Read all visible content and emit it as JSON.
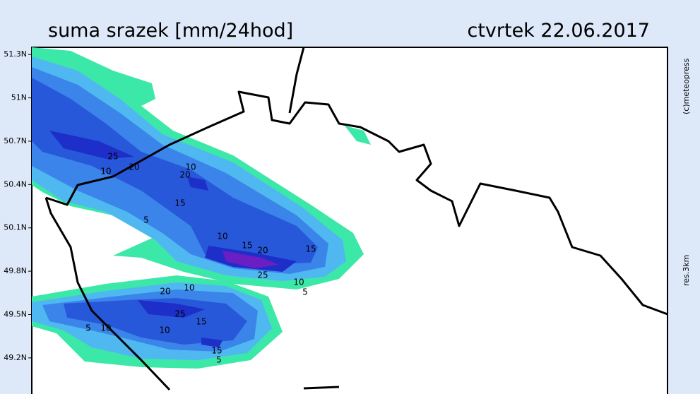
{
  "header": {
    "title": "suma srazek [mm/24hod]",
    "date": "ctvrtek 22.06.2017"
  },
  "side": {
    "copyright": "(c)meteopress",
    "resolution": "res.3km"
  },
  "map": {
    "ylim": [
      48.95,
      51.35
    ],
    "yticks": [
      {
        "value": 51.3,
        "label": "51.3N"
      },
      {
        "value": 51,
        "label": "51N"
      },
      {
        "value": 50.7,
        "label": "50.7N"
      },
      {
        "value": 50.4,
        "label": "50.4N"
      },
      {
        "value": 50.1,
        "label": "50.1N"
      },
      {
        "value": 49.8,
        "label": "49.8N"
      },
      {
        "value": 49.5,
        "label": "49.5N"
      },
      {
        "value": 49.2,
        "label": "49.2N"
      }
    ],
    "contour_labels": [
      25,
      10,
      20,
      10,
      20,
      15,
      5,
      10,
      15,
      20,
      15,
      25,
      10,
      5,
      20,
      10,
      25,
      15,
      10,
      15,
      5,
      5,
      10
    ]
  }
}
